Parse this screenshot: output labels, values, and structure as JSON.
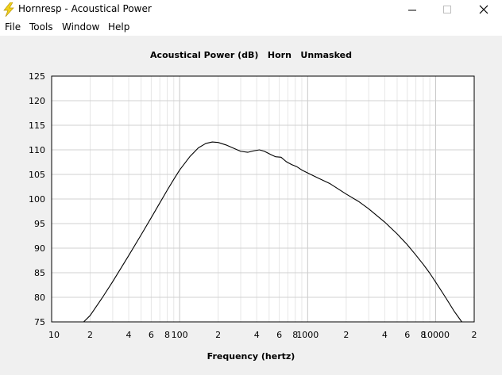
{
  "window": {
    "title": "Hornresp - Acoustical Power",
    "icon": "lightning-bolt-icon",
    "controls": [
      "minimize-icon",
      "maximize-icon",
      "close-icon"
    ]
  },
  "menu": {
    "items": [
      "File",
      "Tools",
      "Window",
      "Help"
    ]
  },
  "chart_data": {
    "type": "line",
    "title": "Acoustical Power (dB)   Horn   Unmasked",
    "xlabel": "Frequency (hertz)",
    "ylabel": "",
    "x_scale": "log",
    "xlim": [
      10,
      20000
    ],
    "ylim": [
      75,
      125
    ],
    "grid": true,
    "y_ticks": [
      125,
      120,
      115,
      110,
      105,
      100,
      95,
      90,
      85,
      80,
      75
    ],
    "x_ticks": [
      {
        "value": 10,
        "label": "10"
      },
      {
        "value": 20,
        "label": "2"
      },
      {
        "value": 40,
        "label": "4"
      },
      {
        "value": 60,
        "label": "6"
      },
      {
        "value": 80,
        "label": "8"
      },
      {
        "value": 100,
        "label": "100"
      },
      {
        "value": 200,
        "label": "2"
      },
      {
        "value": 400,
        "label": "4"
      },
      {
        "value": 600,
        "label": "6"
      },
      {
        "value": 800,
        "label": "8"
      },
      {
        "value": 1000,
        "label": "1000"
      },
      {
        "value": 2000,
        "label": "2"
      },
      {
        "value": 4000,
        "label": "4"
      },
      {
        "value": 6000,
        "label": "6"
      },
      {
        "value": 8000,
        "label": "8"
      },
      {
        "value": 10000,
        "label": "10000"
      },
      {
        "value": 20000,
        "label": "2"
      }
    ],
    "series": [
      {
        "color": "#000000",
        "points": [
          [
            17.8,
            75.0
          ],
          [
            20,
            76.3
          ],
          [
            25,
            80.0
          ],
          [
            30,
            83.2
          ],
          [
            40,
            88.5
          ],
          [
            50,
            92.7
          ],
          [
            60,
            96.2
          ],
          [
            70,
            99.2
          ],
          [
            80,
            101.8
          ],
          [
            90,
            104.0
          ],
          [
            100,
            105.9
          ],
          [
            120,
            108.6
          ],
          [
            140,
            110.4
          ],
          [
            160,
            111.3
          ],
          [
            180,
            111.6
          ],
          [
            200,
            111.5
          ],
          [
            230,
            111.0
          ],
          [
            260,
            110.4
          ],
          [
            300,
            109.7
          ],
          [
            340,
            109.5
          ],
          [
            380,
            109.8
          ],
          [
            420,
            110.0
          ],
          [
            460,
            109.7
          ],
          [
            520,
            109.0
          ],
          [
            560,
            108.6
          ],
          [
            620,
            108.5
          ],
          [
            680,
            107.6
          ],
          [
            750,
            107.0
          ],
          [
            820,
            106.6
          ],
          [
            900,
            105.9
          ],
          [
            1000,
            105.3
          ],
          [
            1200,
            104.3
          ],
          [
            1500,
            103.1
          ],
          [
            2000,
            101.0
          ],
          [
            2500,
            99.5
          ],
          [
            3000,
            98.0
          ],
          [
            4000,
            95.3
          ],
          [
            5000,
            92.9
          ],
          [
            6000,
            90.7
          ],
          [
            7000,
            88.6
          ],
          [
            8000,
            86.7
          ],
          [
            9000,
            84.9
          ],
          [
            10000,
            83.1
          ],
          [
            12000,
            79.9
          ],
          [
            14000,
            77.1
          ],
          [
            16000,
            75.0
          ]
        ]
      }
    ]
  }
}
